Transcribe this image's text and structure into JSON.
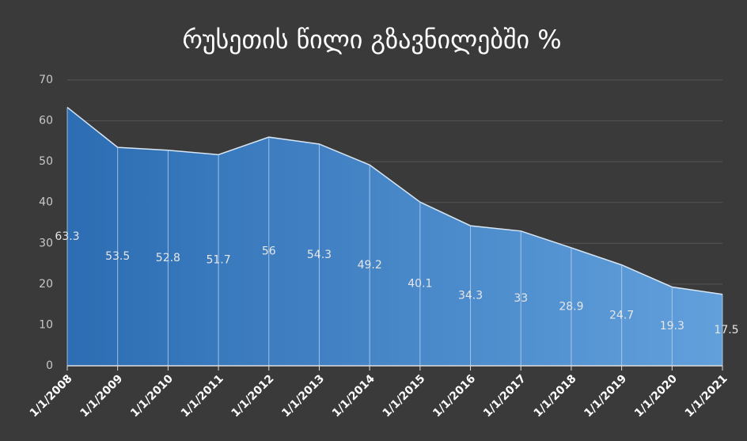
{
  "chart_data": {
    "type": "area",
    "title": "რუსეთის წილი გზავნილებში %",
    "categories": [
      "1/1/2008",
      "1/1/2009",
      "1/1/2010",
      "1/1/2011",
      "1/1/2012",
      "1/1/2013",
      "1/1/2014",
      "1/1/2015",
      "1/1/2016",
      "1/1/2017",
      "1/1/2018",
      "1/1/2019",
      "1/1/2020",
      "1/1/2021"
    ],
    "series": [
      {
        "name": "რუსეთის წილი",
        "color": "#4a87c9",
        "values": [
          63.3,
          53.5,
          52.8,
          51.7,
          56,
          54.3,
          49.2,
          40.1,
          34.3,
          33,
          28.9,
          24.7,
          19.3,
          17.5
        ]
      }
    ],
    "ylim": [
      0,
      70
    ],
    "yticks": [
      0,
      10,
      20,
      30,
      40,
      50,
      60,
      70
    ],
    "grid": true
  }
}
